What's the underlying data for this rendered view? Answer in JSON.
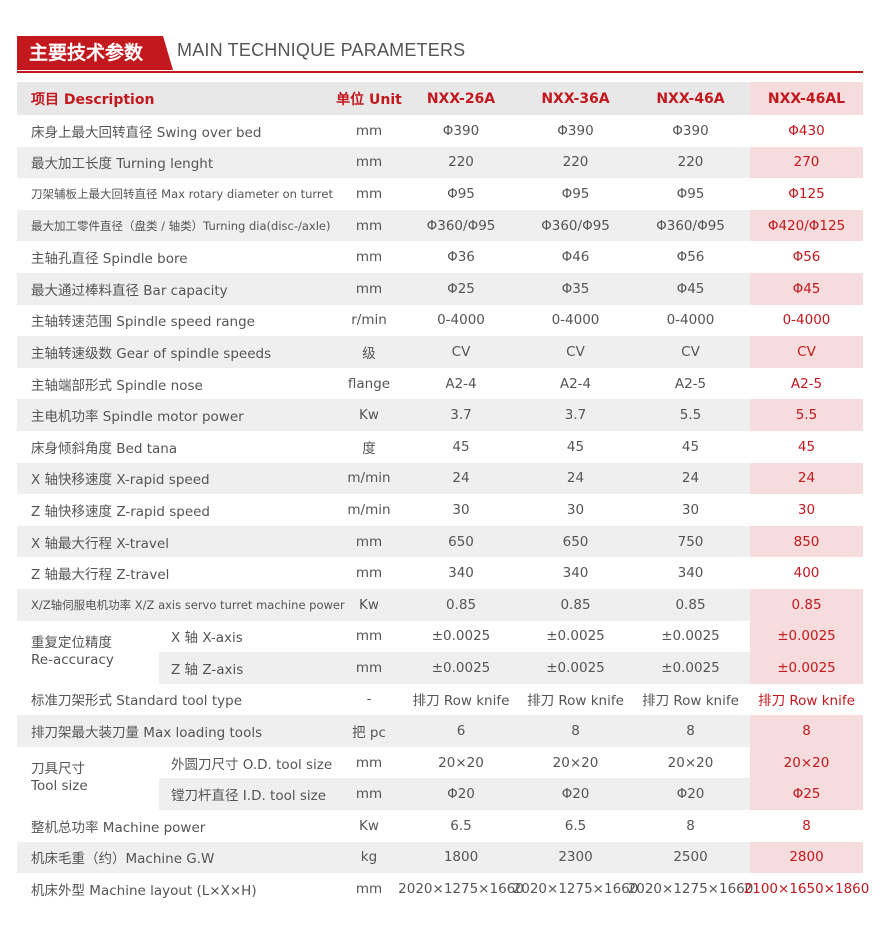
{
  "title": {
    "cn": "主要技术参数",
    "en": "MAIN TECHNIQUE PARAMETERS"
  },
  "header": {
    "desc": "项目 Description",
    "unit": "单位 Unit",
    "m1": "NXX-26A",
    "m2": "NXX-36A",
    "m3": "NXX-46A",
    "m4": "NXX-46AL"
  },
  "rows": [
    {
      "desc": "床身上最大回转直径 Swing over bed",
      "unit": "mm",
      "m1": "Φ390",
      "m2": "Φ390",
      "m3": "Φ390",
      "m4": "Φ430"
    },
    {
      "desc": "最大加工长度 Turning lenght",
      "unit": "mm",
      "m1": "220",
      "m2": "220",
      "m3": "220",
      "m4": "270"
    },
    {
      "desc": "刀架辅板上最大回转直径 Max rotary diameter on turret",
      "unit": "mm",
      "m1": "Φ95",
      "m2": "Φ95",
      "m3": "Φ95",
      "m4": "Φ125"
    },
    {
      "desc": "最大加工零件直径（盘类 / 轴类）Turning dia(disc-/axle)",
      "unit": "mm",
      "m1": "Φ360/Φ95",
      "m2": "Φ360/Φ95",
      "m3": "Φ360/Φ95",
      "m4": "Φ420/Φ125"
    },
    {
      "desc": "主轴孔直径 Spindle bore",
      "unit": "mm",
      "m1": "Φ36",
      "m2": "Φ46",
      "m3": "Φ56",
      "m4": "Φ56"
    },
    {
      "desc": "最大通过棒料直径 Bar capacity",
      "unit": "mm",
      "m1": "Φ25",
      "m2": "Φ35",
      "m3": "Φ45",
      "m4": "Φ45"
    },
    {
      "desc": "主轴转速范围 Spindle speed range",
      "unit": "r/min",
      "m1": "0-4000",
      "m2": "0-4000",
      "m3": "0-4000",
      "m4": "0-4000"
    },
    {
      "desc": "主轴转速级数 Gear of spindle speeds",
      "unit": "级",
      "m1": "CV",
      "m2": "CV",
      "m3": "CV",
      "m4": "CV"
    },
    {
      "desc": "主轴端部形式 Spindle nose",
      "unit": "flange",
      "m1": "A2-4",
      "m2": "A2-4",
      "m3": "A2-5",
      "m4": "A2-5"
    },
    {
      "desc": "主电机功率 Spindle motor power",
      "unit": "Kw",
      "m1": "3.7",
      "m2": "3.7",
      "m3": "5.5",
      "m4": "5.5"
    },
    {
      "desc": "床身倾斜角度 Bed tana",
      "unit": "度",
      "m1": "45",
      "m2": "45",
      "m3": "45",
      "m4": "45"
    },
    {
      "desc": "X 轴快移速度 X-rapid speed",
      "unit": "m/min",
      "m1": "24",
      "m2": "24",
      "m3": "24",
      "m4": "24"
    },
    {
      "desc": "Z 轴快移速度 Z-rapid speed",
      "unit": "m/min",
      "m1": "30",
      "m2": "30",
      "m3": "30",
      "m4": "30"
    },
    {
      "desc": "X 轴最大行程 X-travel",
      "unit": "mm",
      "m1": "650",
      "m2": "650",
      "m3": "750",
      "m4": "850"
    },
    {
      "desc": "Z 轴最大行程 Z-travel",
      "unit": "mm",
      "m1": "340",
      "m2": "340",
      "m3": "340",
      "m4": "400"
    },
    {
      "desc": "X/Z轴伺服电机功率 X/Z axis servo turret machine power",
      "unit": "Kw",
      "m1": "0.85",
      "m2": "0.85",
      "m3": "0.85",
      "m4": "0.85"
    }
  ],
  "accuracy": {
    "label_cn": "重复定位精度",
    "label_en": "Re-accuracy",
    "rows": [
      {
        "sub": "X 轴 X-axis",
        "unit": "mm",
        "m1": "±0.0025",
        "m2": "±0.0025",
        "m3": "±0.0025",
        "m4": "±0.0025"
      },
      {
        "sub": "Z 轴 Z-axis",
        "unit": "mm",
        "m1": "±0.0025",
        "m2": "±0.0025",
        "m3": "±0.0025",
        "m4": "±0.0025"
      }
    ]
  },
  "rows2": [
    {
      "desc": "标准刀架形式 Standard tool type",
      "unit": "-",
      "m1": "排刀 Row knife",
      "m2": "排刀 Row knife",
      "m3": "排刀 Row knife",
      "m4": "排刀 Row knife"
    },
    {
      "desc": "排刀架最大装刀量 Max loading tools",
      "unit": "把 pc",
      "m1": "6",
      "m2": "8",
      "m3": "8",
      "m4": "8"
    }
  ],
  "toolsize": {
    "label_cn": "刀具尺寸",
    "label_en": "Tool size",
    "rows": [
      {
        "sub": "外圆刀尺寸 O.D. tool size",
        "unit": "mm",
        "m1": "20×20",
        "m2": "20×20",
        "m3": "20×20",
        "m4": "20×20"
      },
      {
        "sub": "镗刀杆直径 I.D. tool size",
        "unit": "mm",
        "m1": "Φ20",
        "m2": "Φ20",
        "m3": "Φ20",
        "m4": "Φ25"
      }
    ]
  },
  "rows3": [
    {
      "desc": "整机总功率 Machine power",
      "unit": "Kw",
      "m1": "6.5",
      "m2": "6.5",
      "m3": "8",
      "m4": "8"
    },
    {
      "desc": "机床毛重（约）Machine G.W",
      "unit": "kg",
      "m1": "1800",
      "m2": "2300",
      "m3": "2500",
      "m4": "2800"
    },
    {
      "desc": "机床外型 Machine layout (L×X×H)",
      "unit": "mm",
      "m1": "2020×1275×1660",
      "m2": "2020×1275×1660",
      "m3": "2020×1275×1660",
      "m4": "2100×1650×1860"
    }
  ],
  "colors": {
    "accent": "#c2181e",
    "row_alt": "#efefef",
    "highlight": "#f6dcdc"
  }
}
